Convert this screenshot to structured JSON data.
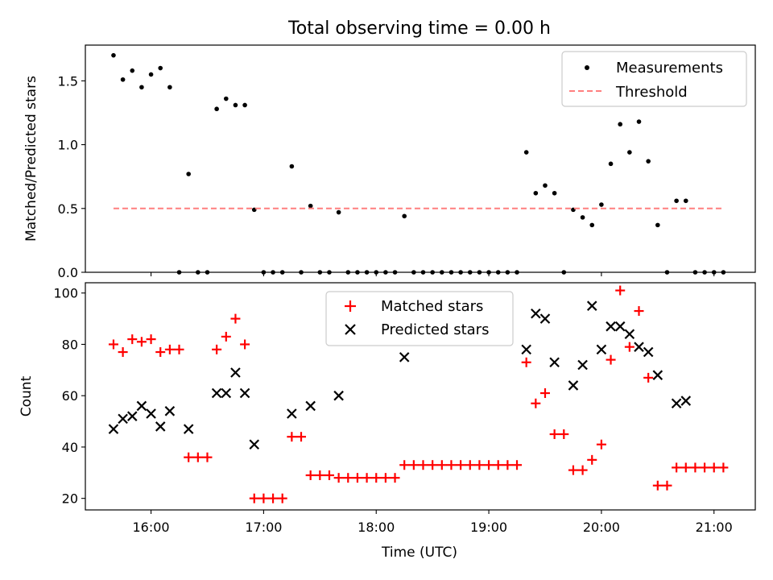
{
  "figure": {
    "title": "Total observing time = 0.00 h"
  },
  "chart_data": [
    {
      "type": "scatter",
      "title": "Total observing time = 0.00 h",
      "xlabel": "",
      "ylabel": "Matched/Predicted stars",
      "xlim": [
        "15:25",
        "21:22"
      ],
      "ylim": [
        0,
        1.78
      ],
      "yticks": [
        0.0,
        0.5,
        1.0,
        1.5
      ],
      "ytick_labels": [
        "0.0",
        "0.5",
        "1.0",
        "1.5"
      ],
      "legend_position": "upper right",
      "colors": {
        "Measurements": "#000000",
        "Threshold": "#ff7f7f"
      },
      "series": [
        {
          "name": "Measurements",
          "x": [
            "15:40",
            "15:45",
            "15:50",
            "15:55",
            "16:00",
            "16:05",
            "16:10",
            "16:15",
            "16:20",
            "16:25",
            "16:30",
            "16:35",
            "16:40",
            "16:45",
            "16:50",
            "16:55",
            "17:00",
            "17:05",
            "17:10",
            "17:15",
            "17:20",
            "17:25",
            "17:30",
            "17:35",
            "17:40",
            "17:45",
            "17:50",
            "17:55",
            "18:00",
            "18:05",
            "18:10",
            "18:15",
            "18:20",
            "18:25",
            "18:30",
            "18:35",
            "18:40",
            "18:45",
            "18:50",
            "18:55",
            "19:00",
            "19:05",
            "19:10",
            "19:15",
            "19:20",
            "19:25",
            "19:30",
            "19:35",
            "19:40",
            "19:45",
            "19:50",
            "19:55",
            "20:00",
            "20:05",
            "20:10",
            "20:15",
            "20:20",
            "20:25",
            "20:30",
            "20:35",
            "20:40",
            "20:45",
            "20:50",
            "20:55",
            "21:00",
            "21:05"
          ],
          "y": [
            1.7,
            1.51,
            1.58,
            1.45,
            1.55,
            1.6,
            1.45,
            0.0,
            0.77,
            0.0,
            0.0,
            1.28,
            1.36,
            1.31,
            1.31,
            0.49,
            0.0,
            0.0,
            0.0,
            0.83,
            0.0,
            0.52,
            0.0,
            0.0,
            0.47,
            0.0,
            0.0,
            0.0,
            0.0,
            0.0,
            0.0,
            0.44,
            0.0,
            0.0,
            0.0,
            0.0,
            0.0,
            0.0,
            0.0,
            0.0,
            0.0,
            0.0,
            0.0,
            0.0,
            0.94,
            0.62,
            0.68,
            0.62,
            0.0,
            0.49,
            0.43,
            0.37,
            0.53,
            0.85,
            1.16,
            0.94,
            1.18,
            0.87,
            0.37,
            0.0,
            0.56,
            0.56,
            0.0,
            0.0,
            0.0,
            0.0
          ]
        },
        {
          "name": "Threshold",
          "style": "dashed",
          "x": [
            "15:40",
            "21:05"
          ],
          "y": [
            0.5,
            0.5
          ]
        }
      ]
    },
    {
      "type": "scatter",
      "title": "",
      "xlabel": "Time (UTC)",
      "ylabel": "Count",
      "xlim": [
        "15:25",
        "21:22"
      ],
      "ylim": [
        15.5,
        104
      ],
      "yticks": [
        20,
        40,
        60,
        80,
        100
      ],
      "ytick_labels": [
        "20",
        "40",
        "60",
        "80",
        "100"
      ],
      "xticks": [
        "16:00",
        "17:00",
        "18:00",
        "19:00",
        "20:00",
        "21:00"
      ],
      "xtick_labels": [
        "16:00",
        "17:00",
        "18:00",
        "19:00",
        "20:00",
        "21:00"
      ],
      "legend_position": "upper center",
      "colors": {
        "Matched stars": "#ff0000",
        "Predicted stars": "#000000"
      },
      "series": [
        {
          "name": "Matched stars",
          "marker": "+",
          "x": [
            "15:40",
            "15:45",
            "15:50",
            "15:55",
            "16:00",
            "16:05",
            "16:10",
            "16:15",
            "16:20",
            "16:25",
            "16:30",
            "16:35",
            "16:40",
            "16:45",
            "16:50",
            "16:55",
            "17:00",
            "17:05",
            "17:10",
            "17:15",
            "17:20",
            "17:25",
            "17:30",
            "17:35",
            "17:40",
            "17:45",
            "17:50",
            "17:55",
            "18:00",
            "18:05",
            "18:10",
            "18:15",
            "18:20",
            "18:25",
            "18:30",
            "18:35",
            "18:40",
            "18:45",
            "18:50",
            "18:55",
            "19:00",
            "19:05",
            "19:10",
            "19:15",
            "19:20",
            "19:25",
            "19:30",
            "19:35",
            "19:40",
            "19:45",
            "19:50",
            "19:55",
            "20:00",
            "20:05",
            "20:10",
            "20:15",
            "20:20",
            "20:25",
            "20:30",
            "20:35",
            "20:40",
            "20:45",
            "20:50",
            "20:55",
            "21:00",
            "21:05"
          ],
          "y": [
            80,
            77,
            82,
            81,
            82,
            77,
            78,
            78,
            36,
            36,
            36,
            78,
            83,
            90,
            80,
            20,
            20,
            20,
            20,
            44,
            44,
            29,
            29,
            29,
            28,
            28,
            28,
            28,
            28,
            28,
            28,
            33,
            33,
            33,
            33,
            33,
            33,
            33,
            33,
            33,
            33,
            33,
            33,
            33,
            73,
            57,
            61,
            45,
            45,
            31,
            31,
            35,
            41,
            74,
            101,
            79,
            93,
            67,
            25,
            25,
            32,
            32,
            32,
            32,
            32,
            32
          ]
        },
        {
          "name": "Predicted stars",
          "marker": "x",
          "x": [
            "15:40",
            "15:45",
            "15:50",
            "15:55",
            "16:00",
            "16:05",
            "16:10",
            "16:20",
            "16:35",
            "16:40",
            "16:45",
            "16:50",
            "16:55",
            "17:15",
            "17:25",
            "17:40",
            "18:15",
            "19:20",
            "19:25",
            "19:30",
            "19:35",
            "19:45",
            "19:50",
            "19:55",
            "20:00",
            "20:05",
            "20:10",
            "20:15",
            "20:20",
            "20:25",
            "20:30",
            "20:40",
            "20:45"
          ],
          "y": [
            47,
            51,
            52,
            56,
            53,
            48,
            54,
            47,
            61,
            61,
            69,
            61,
            41,
            53,
            56,
            60,
            75,
            78,
            92,
            90,
            73,
            64,
            72,
            95,
            78,
            87,
            87,
            84,
            79,
            77,
            68,
            57,
            58
          ]
        }
      ]
    }
  ]
}
